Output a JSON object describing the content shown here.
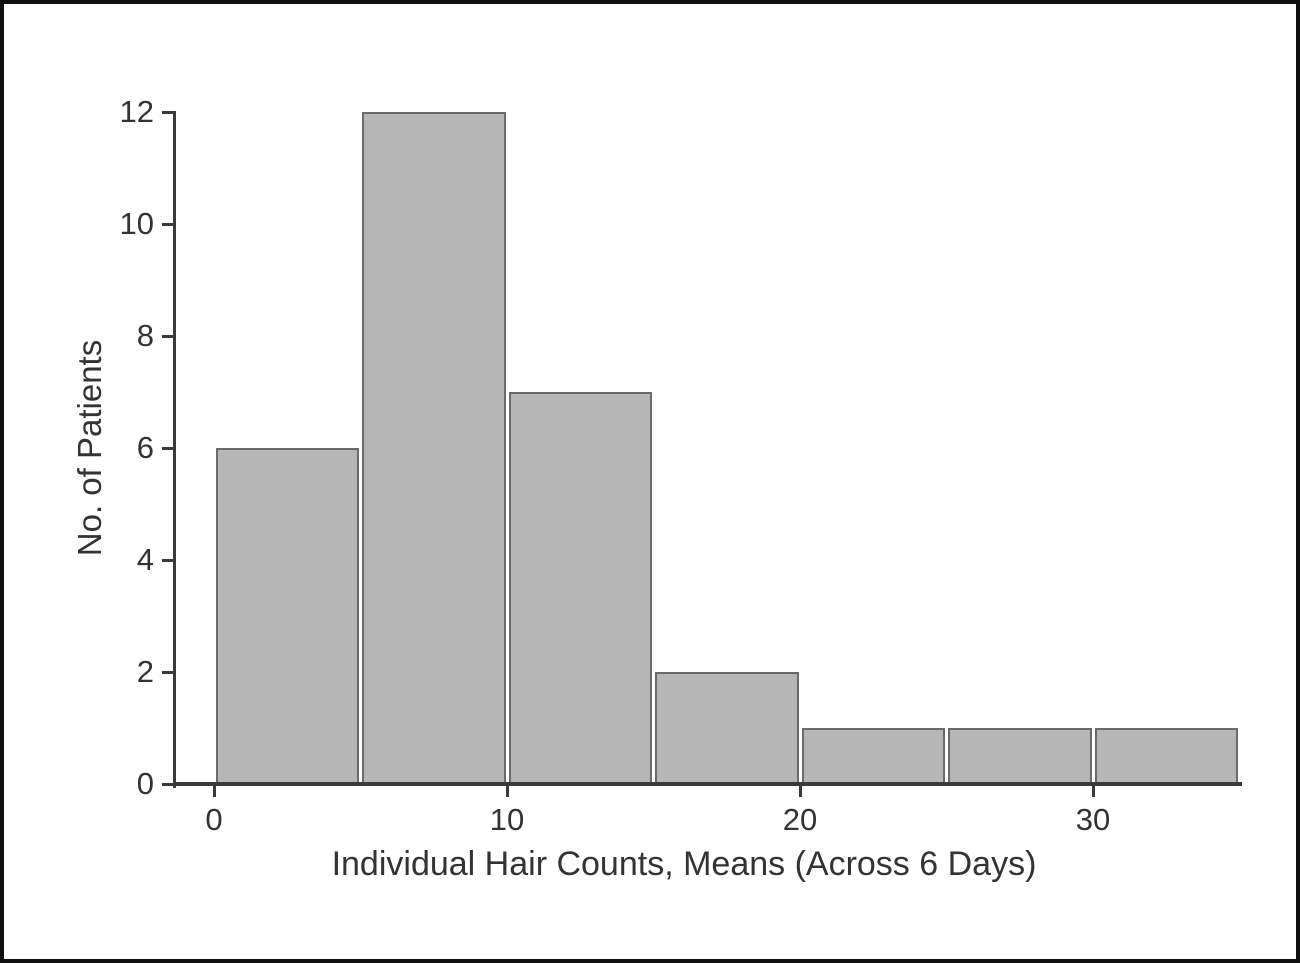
{
  "chart_data": {
    "type": "bar",
    "subtype": "histogram",
    "title": "",
    "xlabel": "Individual Hair Counts, Means (Across 6 Days)",
    "ylabel": "No. of Patients",
    "bin_width": 5,
    "bins": [
      {
        "range": [
          0,
          5
        ],
        "count": 6
      },
      {
        "range": [
          5,
          10
        ],
        "count": 12
      },
      {
        "range": [
          10,
          15
        ],
        "count": 7
      },
      {
        "range": [
          15,
          20
        ],
        "count": 2
      },
      {
        "range": [
          20,
          25
        ],
        "count": 1
      },
      {
        "range": [
          25,
          30
        ],
        "count": 1
      },
      {
        "range": [
          30,
          35
        ],
        "count": 1
      }
    ],
    "x_ticks": [
      0,
      10,
      20,
      30
    ],
    "y_ticks": [
      0,
      2,
      4,
      6,
      8,
      10,
      12
    ],
    "xlim": [
      0,
      35
    ],
    "ylim": [
      0,
      12
    ],
    "grid": false,
    "legend": null,
    "colors": {
      "bar_fill": "#b6b6b6",
      "bar_stroke": "#6a6a6a",
      "axis": "#3a3a3a",
      "text": "#333333",
      "frame": "#111111",
      "background": "#ffffff"
    }
  }
}
